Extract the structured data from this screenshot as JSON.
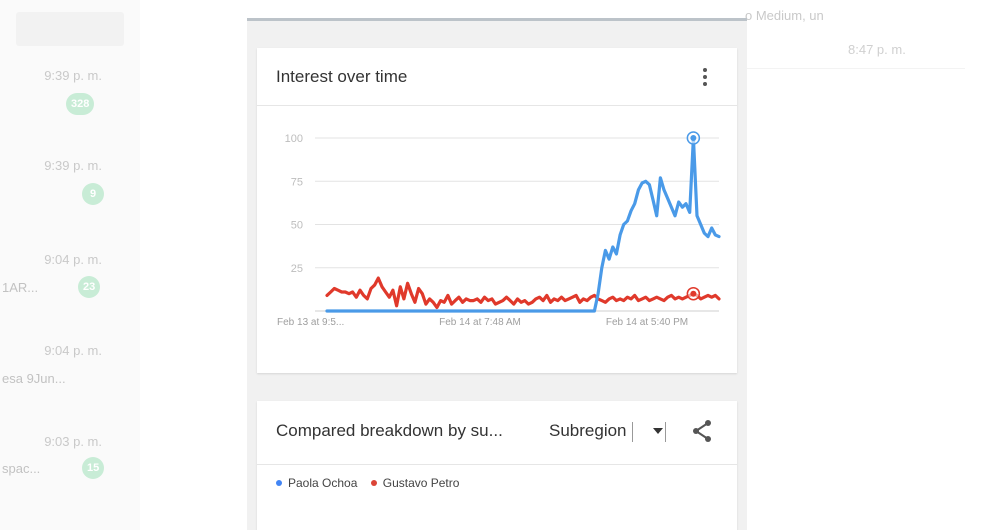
{
  "background": {
    "left_times": [
      "9:39 p. m.",
      "9:39 p. m.",
      "9:04 p. m.",
      "9:04 p. m.",
      "9:03 p. m."
    ],
    "left_badges": [
      "328",
      "9",
      "23",
      "",
      "15"
    ],
    "left_snippets": [
      "1AR...",
      "esa 9Jun...",
      "spac..."
    ],
    "right_header": "o Medium, un",
    "right_time": "8:47 p. m."
  },
  "card1": {
    "title": "Interest over time",
    "menu_icon": "more-vert-icon"
  },
  "card2": {
    "title": "Compared breakdown by su...",
    "select_value": "Subregion",
    "share_icon": "share-icon",
    "legend": [
      {
        "name": "Paola Ochoa",
        "color": "#4285f4"
      },
      {
        "name": "Gustavo Petro",
        "color": "#db4437"
      }
    ]
  },
  "chart_data": {
    "type": "line",
    "title": "Interest over time",
    "y_ticks": [
      "100",
      "75",
      "50",
      "25"
    ],
    "ylim": [
      0,
      100
    ],
    "x_tick_labels": [
      "Feb 13 at 9:5...",
      "Feb 14 at 7:48 AM",
      "Feb 14 at 5:40 PM"
    ],
    "grid": true,
    "series": [
      {
        "name": "Paola Ochoa",
        "color": "#4a9ae8",
        "values": [
          0,
          0,
          0,
          0,
          0,
          0,
          0,
          0,
          0,
          0,
          0,
          0,
          0,
          0,
          0,
          0,
          0,
          0,
          0,
          0,
          0,
          0,
          0,
          0,
          0,
          0,
          0,
          0,
          0,
          0,
          0,
          0,
          0,
          0,
          0,
          0,
          0,
          0,
          0,
          0,
          0,
          0,
          0,
          0,
          0,
          0,
          0,
          0,
          0,
          0,
          0,
          0,
          0,
          0,
          0,
          0,
          0,
          0,
          0,
          0,
          0,
          0,
          0,
          0,
          0,
          0,
          0,
          0,
          0,
          0,
          0,
          0,
          0,
          0,
          10,
          25,
          35,
          30,
          37,
          33,
          44,
          50,
          52,
          58,
          62,
          70,
          74,
          75,
          73,
          64,
          55,
          77,
          70,
          65,
          60,
          55,
          63,
          60,
          62,
          57,
          100,
          55,
          50,
          45,
          43,
          48,
          44,
          43
        ]
      },
      {
        "name": "Gustavo Petro",
        "color": "#e0392b",
        "values": [
          9,
          11,
          13,
          12,
          11,
          11,
          10,
          11,
          8,
          12,
          9,
          7,
          13,
          15,
          19,
          14,
          11,
          8,
          12,
          3,
          14,
          7,
          16,
          10,
          5,
          13,
          10,
          4,
          7,
          5,
          2,
          6,
          5,
          9,
          4,
          6,
          8,
          5,
          7,
          6,
          6,
          7,
          5,
          8,
          6,
          7,
          4,
          5,
          6,
          8,
          6,
          4,
          7,
          5,
          6,
          4,
          5,
          7,
          8,
          6,
          9,
          5,
          7,
          6,
          8,
          6,
          7,
          8,
          9,
          5,
          7,
          6,
          8,
          9,
          7,
          6,
          5,
          7,
          8,
          6,
          7,
          6,
          8,
          7,
          9,
          6,
          7,
          8,
          6,
          7,
          8,
          7,
          6,
          8,
          9,
          7,
          8,
          7,
          8,
          9,
          10,
          9,
          7,
          8,
          9,
          8,
          9,
          7
        ]
      }
    ],
    "highlight_markers": [
      {
        "series": "Paola Ochoa",
        "index": 100
      },
      {
        "series": "Gustavo Petro",
        "index": 100
      }
    ]
  }
}
